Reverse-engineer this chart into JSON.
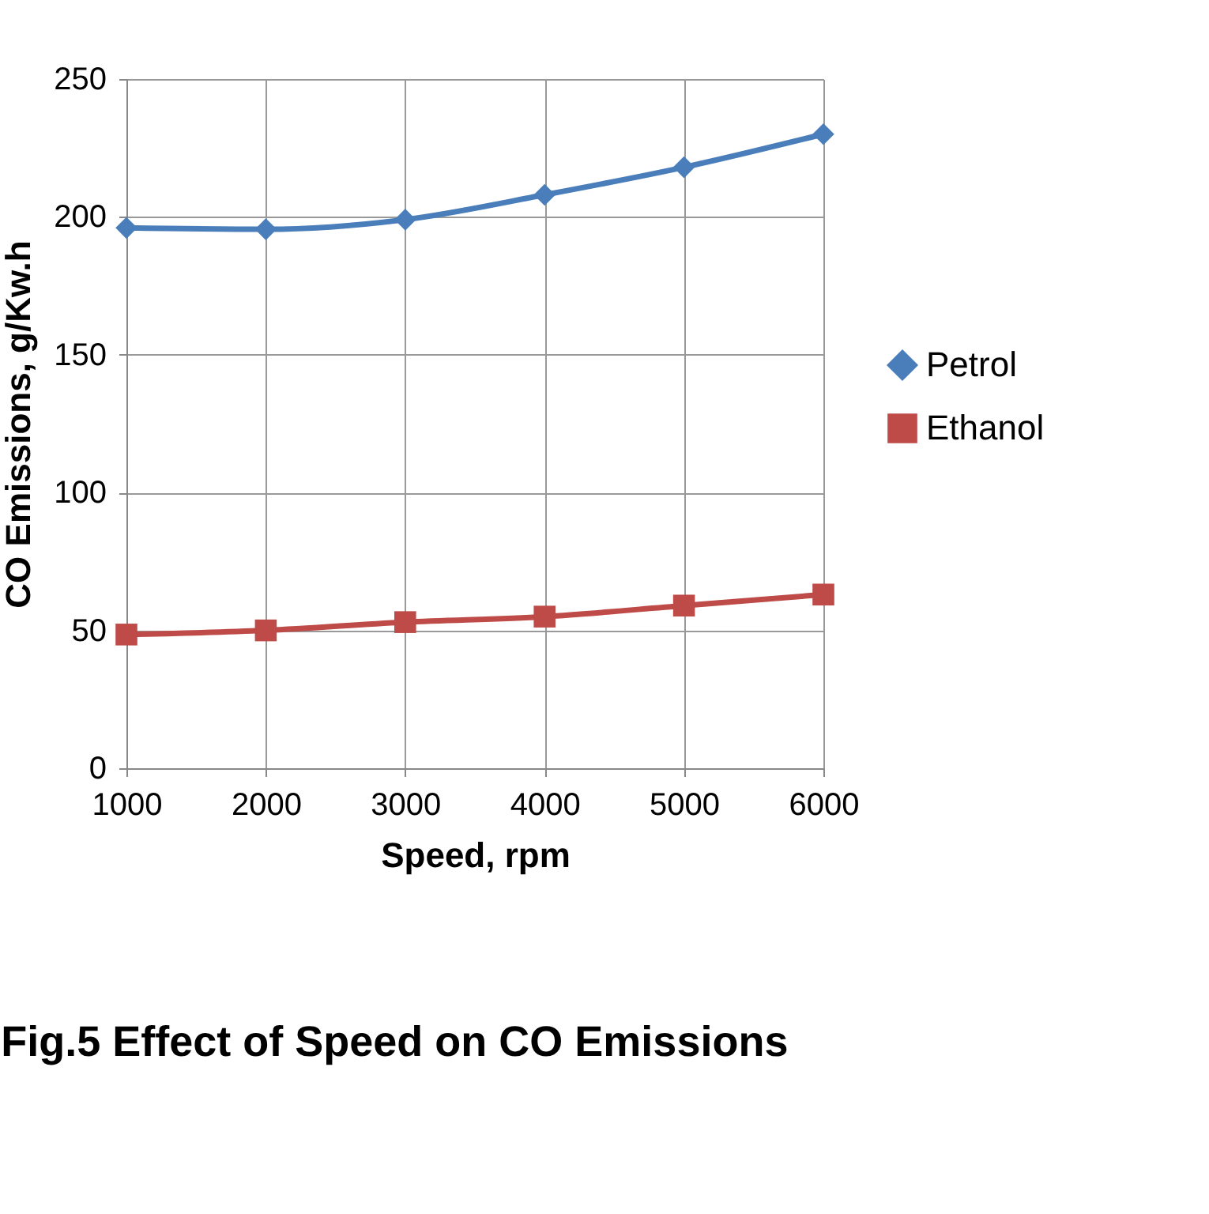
{
  "chart_data": {
    "type": "line",
    "title": "Fig.5 Effect of Speed on CO Emissions",
    "xlabel": "Speed, rpm",
    "ylabel": "CO Emissions, g/Kw.h",
    "x": [
      1000,
      2000,
      3000,
      4000,
      5000,
      6000
    ],
    "series": [
      {
        "name": "Petrol",
        "color": "#4a7ebb",
        "marker": "diamond",
        "values": [
          196,
          195.5,
          199,
          208,
          218,
          230
        ]
      },
      {
        "name": "Ethanol",
        "color": "#be4b48",
        "marker": "square",
        "values": [
          48.5,
          50,
          53,
          55,
          59,
          63
        ]
      }
    ],
    "xlim": [
      1000,
      6000
    ],
    "xticks": [
      1000,
      2000,
      3000,
      4000,
      5000,
      6000
    ],
    "ylim": [
      0,
      250
    ],
    "yticks": [
      0,
      50,
      100,
      150,
      200,
      250
    ],
    "grid": true,
    "legend": "right",
    "line_style": "solid"
  }
}
